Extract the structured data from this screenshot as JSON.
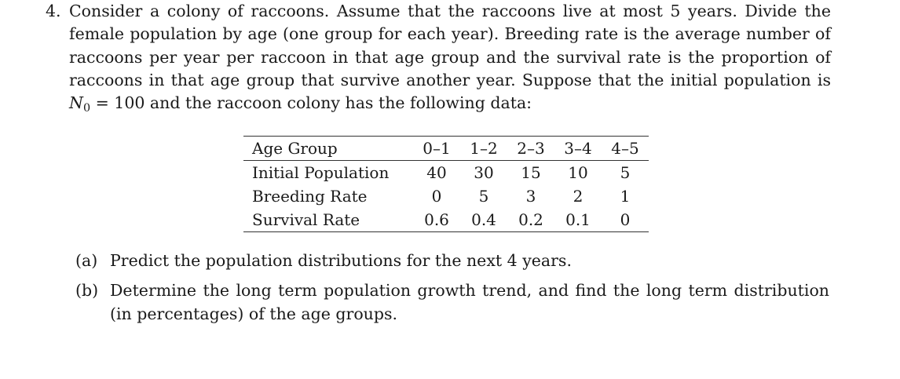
{
  "problem": {
    "number": "4.",
    "lines": [
      "Consider a colony of raccoons. Assume that the raccoons live at most 5 years. Divide the",
      "female population by age (one group for each year). Breeding rate is the average number of",
      "raccoons per year per raccoon in that age group and the survival rate is the proportion of",
      "raccoons in that age group that survive another year. Suppose that the initial population is"
    ],
    "last_line_var": "N",
    "last_line_sub": "0",
    "last_line_rest": " = 100 and the raccoon colony has the following data:"
  },
  "table": {
    "rows": [
      {
        "label": "Age Group",
        "values": [
          "0–1",
          "1–2",
          "2–3",
          "3–4",
          "4–5"
        ]
      },
      {
        "label": "Initial Population",
        "values": [
          "40",
          "30",
          "15",
          "10",
          "5"
        ]
      },
      {
        "label": "Breeding Rate",
        "values": [
          "0",
          "5",
          "3",
          "2",
          "1"
        ]
      },
      {
        "label": "Survival Rate",
        "values": [
          "0.6",
          "0.4",
          "0.2",
          "0.1",
          "0"
        ]
      }
    ]
  },
  "parts": [
    {
      "label": "(a)",
      "lines": [
        "Predict the population distributions for the next 4 years."
      ]
    },
    {
      "label": "(b)",
      "lines": [
        "Determine the long term population growth trend, and find the long term distribution",
        "(in percentages) of the age groups."
      ]
    }
  ]
}
